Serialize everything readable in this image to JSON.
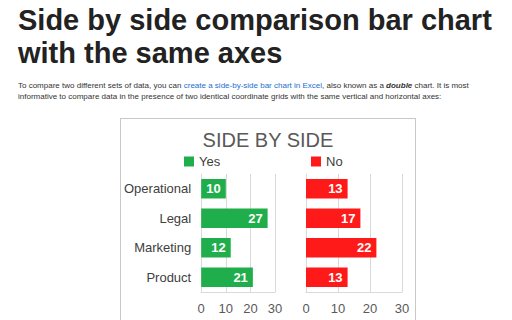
{
  "heading": "Side by side comparison bar chart with the same axes",
  "intro": [
    {
      "text": "To compare two different sets of data, you can "
    },
    {
      "text": "create a side-by-side bar chart in Excel",
      "link": true
    },
    {
      "text": ", also known as a "
    },
    {
      "text": "double",
      "emphasis": true
    },
    {
      "text": " chart. It is most informative to compare data in the presence of two identical coordinate grids with the same vertical and horizontal axes:"
    }
  ],
  "figure_title": "SIDE BY SIDE",
  "chart_data": [
    {
      "type": "bar",
      "orientation": "horizontal",
      "categories": [
        "Operational",
        "Legal",
        "Marketing",
        "Product"
      ],
      "series": [
        {
          "name": "Yes",
          "color": "#1fae4b",
          "values": [
            10,
            27,
            12,
            21
          ]
        }
      ],
      "xlim": [
        0,
        30
      ],
      "xticks": [
        0,
        10,
        20,
        30
      ],
      "grid": true,
      "data_labels": true,
      "legend": "top-left"
    },
    {
      "type": "bar",
      "orientation": "horizontal",
      "categories": [
        "Operational",
        "Legal",
        "Marketing",
        "Product"
      ],
      "series": [
        {
          "name": "No",
          "color": "#ff1a1a",
          "values": [
            13,
            17,
            22,
            13
          ]
        }
      ],
      "xlim": [
        0,
        30
      ],
      "xticks": [
        0,
        10,
        20,
        30
      ],
      "grid": true,
      "data_labels": true,
      "legend": "top-left",
      "tick_labels": "x"
    }
  ]
}
